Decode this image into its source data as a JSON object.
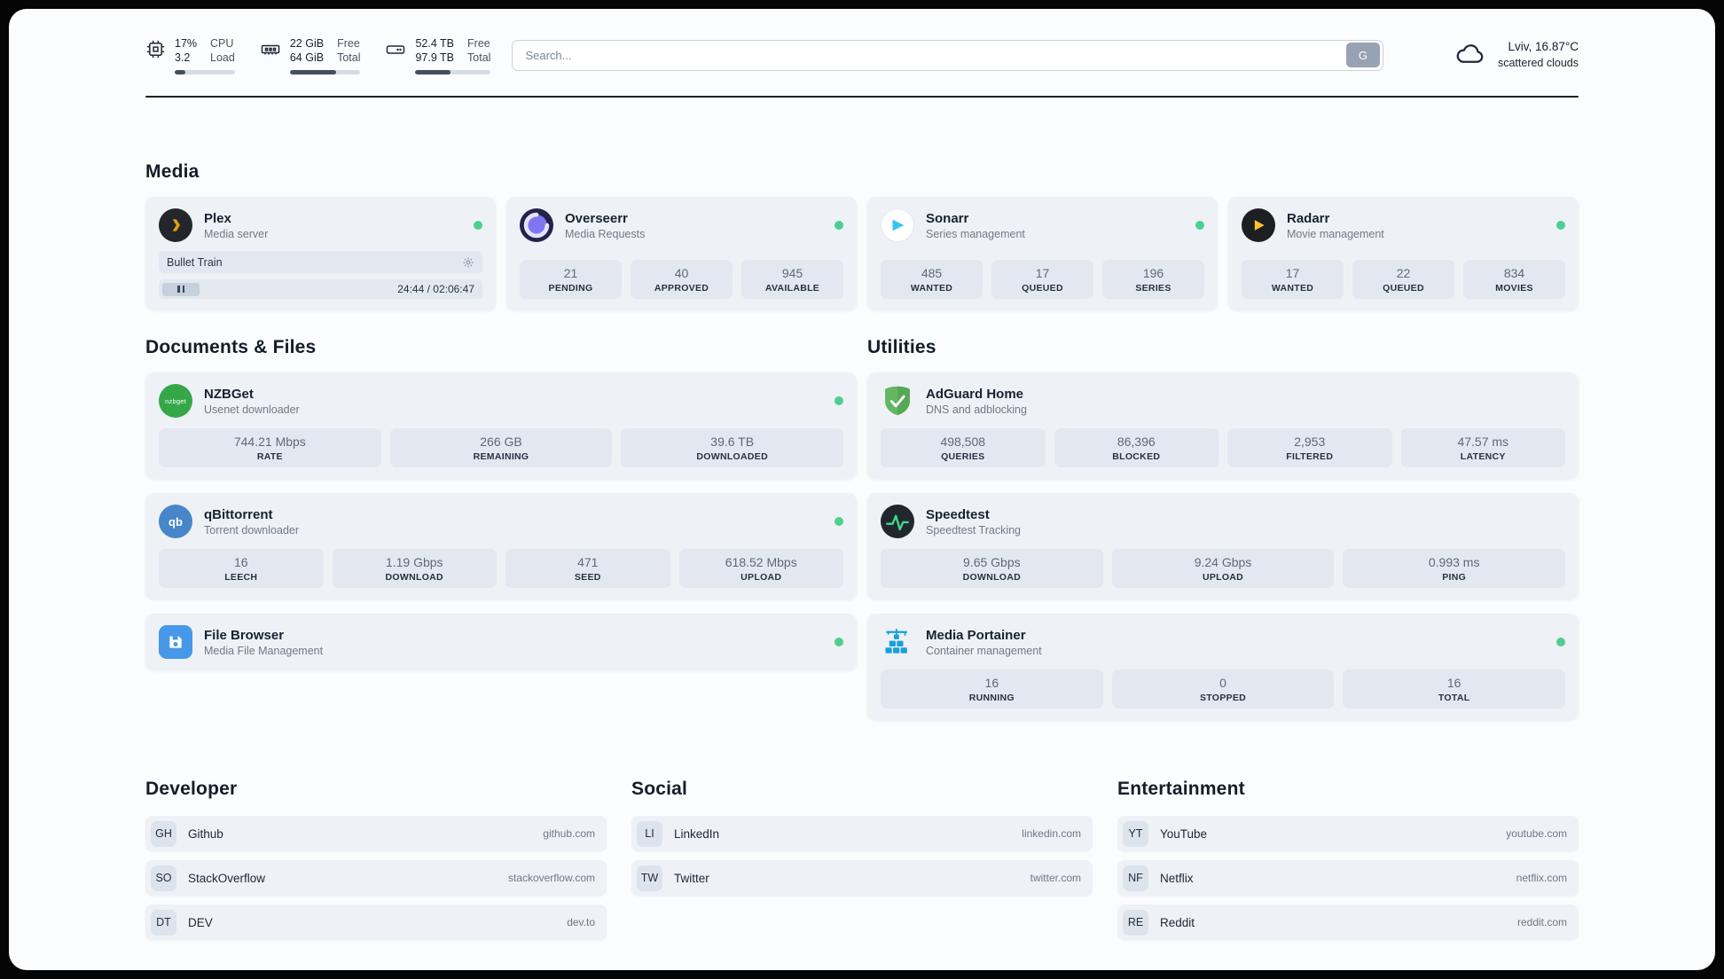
{
  "topbar": {
    "cpu": {
      "percent": "17%",
      "load": "3.2",
      "label_top": "CPU",
      "label_bottom": "Load",
      "bar_percent": 17
    },
    "memory": {
      "free": "22 GiB",
      "total": "64 GiB",
      "label_top": "Free",
      "label_bottom": "Total",
      "bar_percent": 66
    },
    "disk": {
      "free": "52.4 TB",
      "total": "97.9 TB",
      "label_top": "Free",
      "label_bottom": "Total",
      "bar_percent": 46
    },
    "search": {
      "placeholder": "Search...",
      "button": "G"
    },
    "weather": {
      "location": "Lviv, 16.87°C",
      "condition": "scattered clouds"
    }
  },
  "media": {
    "title": "Media",
    "plex": {
      "name": "Plex",
      "subtitle": "Media server",
      "now_playing": "Bullet Train",
      "time": "24:44 / 02:06:47"
    },
    "overseerr": {
      "name": "Overseerr",
      "subtitle": "Media Requests",
      "stats": [
        {
          "value": "21",
          "label": "PENDING"
        },
        {
          "value": "40",
          "label": "APPROVED"
        },
        {
          "value": "945",
          "label": "AVAILABLE"
        }
      ]
    },
    "sonarr": {
      "name": "Sonarr",
      "subtitle": "Series management",
      "stats": [
        {
          "value": "485",
          "label": "WANTED"
        },
        {
          "value": "17",
          "label": "QUEUED"
        },
        {
          "value": "196",
          "label": "SERIES"
        }
      ]
    },
    "radarr": {
      "name": "Radarr",
      "subtitle": "Movie management",
      "stats": [
        {
          "value": "17",
          "label": "WANTED"
        },
        {
          "value": "22",
          "label": "QUEUED"
        },
        {
          "value": "834",
          "label": "MOVIES"
        }
      ]
    }
  },
  "documents": {
    "title": "Documents & Files",
    "nzbget": {
      "name": "NZBGet",
      "subtitle": "Usenet downloader",
      "icon_text": "nzbget",
      "stats": [
        {
          "value": "744.21 Mbps",
          "label": "RATE"
        },
        {
          "value": "266 GB",
          "label": "REMAINING"
        },
        {
          "value": "39.6 TB",
          "label": "DOWNLOADED"
        }
      ]
    },
    "qbittorrent": {
      "name": "qBittorrent",
      "subtitle": "Torrent downloader",
      "icon_text": "qb",
      "stats": [
        {
          "value": "16",
          "label": "LEECH"
        },
        {
          "value": "1.19 Gbps",
          "label": "DOWNLOAD"
        },
        {
          "value": "471",
          "label": "SEED"
        },
        {
          "value": "618.52 Mbps",
          "label": "UPLOAD"
        }
      ]
    },
    "filebrowser": {
      "name": "File Browser",
      "subtitle": "Media File Management"
    }
  },
  "utilities": {
    "title": "Utilities",
    "adguard": {
      "name": "AdGuard Home",
      "subtitle": "DNS and adblocking",
      "stats": [
        {
          "value": "498,508",
          "label": "QUERIES"
        },
        {
          "value": "86,396",
          "label": "BLOCKED"
        },
        {
          "value": "2,953",
          "label": "FILTERED"
        },
        {
          "value": "47.57 ms",
          "label": "LATENCY"
        }
      ]
    },
    "speedtest": {
      "name": "Speedtest",
      "subtitle": "Speedtest Tracking",
      "stats": [
        {
          "value": "9.65 Gbps",
          "label": "DOWNLOAD"
        },
        {
          "value": "9.24 Gbps",
          "label": "UPLOAD"
        },
        {
          "value": "0.993 ms",
          "label": "PING"
        }
      ]
    },
    "portainer": {
      "name": "Media Portainer",
      "subtitle": "Container management",
      "stats": [
        {
          "value": "16",
          "label": "RUNNING"
        },
        {
          "value": "0",
          "label": "STOPPED"
        },
        {
          "value": "16",
          "label": "TOTAL"
        }
      ]
    }
  },
  "bookmarks": {
    "developer": {
      "title": "Developer",
      "items": [
        {
          "abbr": "GH",
          "name": "Github",
          "url": "github.com"
        },
        {
          "abbr": "SO",
          "name": "StackOverflow",
          "url": "stackoverflow.com"
        },
        {
          "abbr": "DT",
          "name": "DEV",
          "url": "dev.to"
        }
      ]
    },
    "social": {
      "title": "Social",
      "items": [
        {
          "abbr": "LI",
          "name": "LinkedIn",
          "url": "linkedin.com"
        },
        {
          "abbr": "TW",
          "name": "Twitter",
          "url": "twitter.com"
        }
      ]
    },
    "entertainment": {
      "title": "Entertainment",
      "items": [
        {
          "abbr": "YT",
          "name": "YouTube",
          "url": "youtube.com"
        },
        {
          "abbr": "NF",
          "name": "Netflix",
          "url": "netflix.com"
        },
        {
          "abbr": "RE",
          "name": "Reddit",
          "url": "reddit.com"
        }
      ]
    }
  },
  "colors": {
    "status_green": "#4fcf8d",
    "accent_dark": "#1d2126"
  }
}
